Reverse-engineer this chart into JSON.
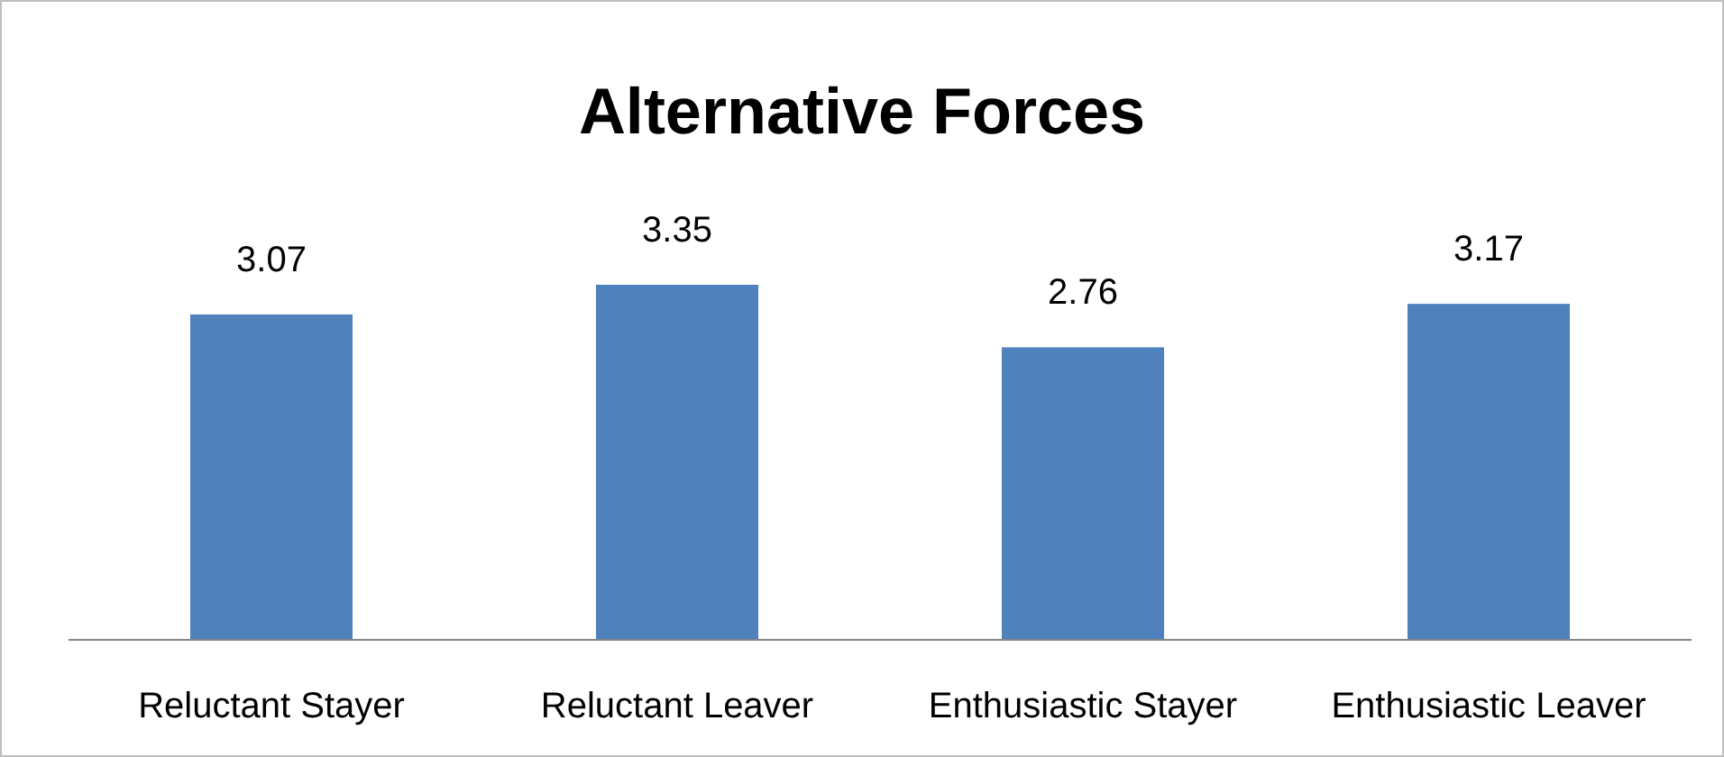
{
  "chart_data": {
    "type": "bar",
    "title": "Alternative Forces",
    "categories": [
      "Reluctant Stayer",
      "Reluctant Leaver",
      "Enthusiastic Stayer",
      "Enthusiastic Leaver"
    ],
    "values": [
      3.07,
      3.35,
      2.76,
      3.17
    ],
    "color": "#4f81bd",
    "data_labels": true
  }
}
